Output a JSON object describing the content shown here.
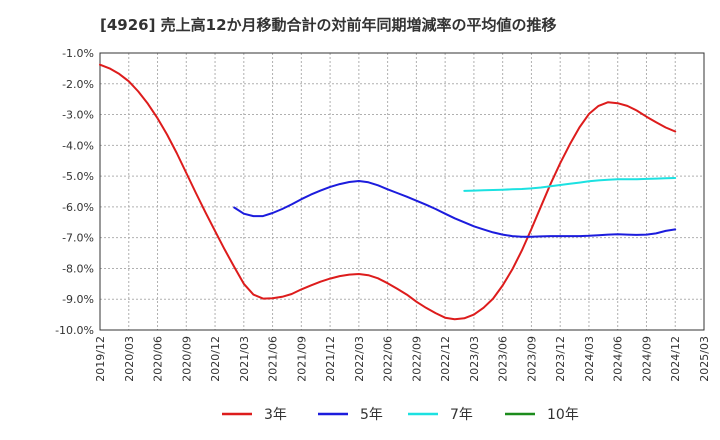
{
  "chart_data": {
    "type": "line",
    "title": "[4926]  売上高12か月移動合計の対前年同期増減率の平均値の推移",
    "xlabel": "",
    "ylabel": "",
    "ylim": [
      -10.0,
      -1.0
    ],
    "y_ticks": [
      -1.0,
      -2.0,
      -3.0,
      -4.0,
      -5.0,
      -6.0,
      -7.0,
      -8.0,
      -9.0,
      -10.0
    ],
    "y_tick_labels": [
      "-1.0%",
      "-2.0%",
      "-3.0%",
      "-4.0%",
      "-5.0%",
      "-6.0%",
      "-7.0%",
      "-8.0%",
      "-9.0%",
      "-10.0%"
    ],
    "x_ticks": [
      "2019/12",
      "2020/03",
      "2020/06",
      "2020/09",
      "2020/12",
      "2021/03",
      "2021/06",
      "2021/09",
      "2021/12",
      "2022/03",
      "2022/06",
      "2022/09",
      "2022/12",
      "2023/03",
      "2023/06",
      "2023/09",
      "2023/12",
      "2024/03",
      "2024/06",
      "2024/09",
      "2024/12",
      "2025/03"
    ],
    "x_range_months": [
      0,
      63
    ],
    "x_note": "x values are months since 2019/12",
    "grid": true,
    "legend_position": "bottom",
    "series": [
      {
        "name": "3年",
        "color": "#dd1c1c",
        "x": [
          0,
          1,
          2,
          3,
          4,
          5,
          6,
          7,
          8,
          9,
          10,
          11,
          12,
          13,
          14,
          15,
          16,
          17,
          18,
          19,
          20,
          21,
          22,
          23,
          24,
          25,
          26,
          27,
          28,
          29,
          30,
          31,
          32,
          33,
          34,
          35,
          36,
          37,
          38,
          39,
          40,
          41,
          42,
          43,
          44,
          45,
          46,
          47,
          48,
          49,
          50,
          51,
          52,
          53,
          54,
          55,
          56,
          57,
          58,
          59,
          60
        ],
        "values": [
          -1.38,
          -1.5,
          -1.68,
          -1.92,
          -2.25,
          -2.65,
          -3.12,
          -3.65,
          -4.25,
          -4.9,
          -5.55,
          -6.18,
          -6.78,
          -7.38,
          -7.95,
          -8.5,
          -8.85,
          -8.98,
          -8.97,
          -8.92,
          -8.83,
          -8.68,
          -8.55,
          -8.43,
          -8.33,
          -8.25,
          -8.2,
          -8.18,
          -8.22,
          -8.32,
          -8.48,
          -8.66,
          -8.85,
          -9.08,
          -9.28,
          -9.45,
          -9.6,
          -9.65,
          -9.62,
          -9.5,
          -9.28,
          -8.98,
          -8.55,
          -8.03,
          -7.42,
          -6.72,
          -5.98,
          -5.25,
          -4.58,
          -3.97,
          -3.42,
          -2.98,
          -2.72,
          -2.6,
          -2.63,
          -2.72,
          -2.87,
          -3.07,
          -3.25,
          -3.42,
          -3.55
        ]
      },
      {
        "name": "5年",
        "color": "#1c1cdd",
        "x": [
          14,
          15,
          16,
          17,
          18,
          19,
          20,
          21,
          22,
          23,
          24,
          25,
          26,
          27,
          28,
          29,
          30,
          31,
          32,
          33,
          34,
          35,
          36,
          37,
          38,
          39,
          40,
          41,
          42,
          43,
          44,
          45,
          46,
          47,
          48,
          49,
          50,
          51,
          52,
          53,
          54,
          55,
          56,
          57,
          58,
          59,
          60
        ],
        "values": [
          -6.02,
          -6.22,
          -6.3,
          -6.3,
          -6.2,
          -6.07,
          -5.92,
          -5.75,
          -5.6,
          -5.47,
          -5.35,
          -5.26,
          -5.19,
          -5.16,
          -5.2,
          -5.3,
          -5.43,
          -5.55,
          -5.67,
          -5.8,
          -5.93,
          -6.07,
          -6.22,
          -6.37,
          -6.5,
          -6.63,
          -6.73,
          -6.83,
          -6.9,
          -6.95,
          -6.97,
          -6.97,
          -6.96,
          -6.95,
          -6.95,
          -6.95,
          -6.95,
          -6.94,
          -6.92,
          -6.9,
          -6.89,
          -6.9,
          -6.91,
          -6.9,
          -6.86,
          -6.78,
          -6.73
        ]
      },
      {
        "name": "7年",
        "color": "#1ce1e1",
        "x": [
          38,
          39,
          40,
          41,
          42,
          43,
          44,
          45,
          46,
          47,
          48,
          49,
          50,
          51,
          52,
          53,
          54,
          55,
          56,
          57,
          58,
          59,
          60
        ],
        "values": [
          -5.48,
          -5.47,
          -5.46,
          -5.45,
          -5.44,
          -5.43,
          -5.42,
          -5.4,
          -5.37,
          -5.33,
          -5.29,
          -5.25,
          -5.21,
          -5.17,
          -5.14,
          -5.12,
          -5.1,
          -5.1,
          -5.1,
          -5.09,
          -5.08,
          -5.07,
          -5.06
        ]
      },
      {
        "name": "10年",
        "color": "#1c8c1c",
        "x": [],
        "values": []
      }
    ]
  }
}
